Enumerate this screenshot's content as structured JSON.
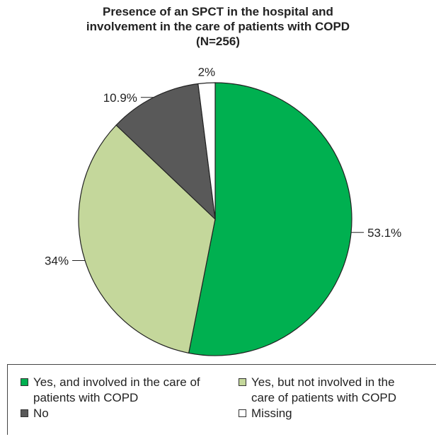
{
  "chart_data": {
    "type": "pie",
    "title": [
      "Presence of an SPCT in the hospital and",
      "involvement in the care of patients with COPD",
      "(N=256)"
    ],
    "categories": [
      "Yes, and involved in the care of patients with COPD",
      "Yes, but not involved in the care of patients with COPD",
      "No",
      "Missing"
    ],
    "values": [
      53.1,
      34,
      10.9,
      2
    ],
    "value_labels": [
      "53.1%",
      "34%",
      "10.9%",
      "2%"
    ],
    "colors": [
      "#00b050",
      "#c4d79b",
      "#595959",
      "#ffffff"
    ]
  }
}
